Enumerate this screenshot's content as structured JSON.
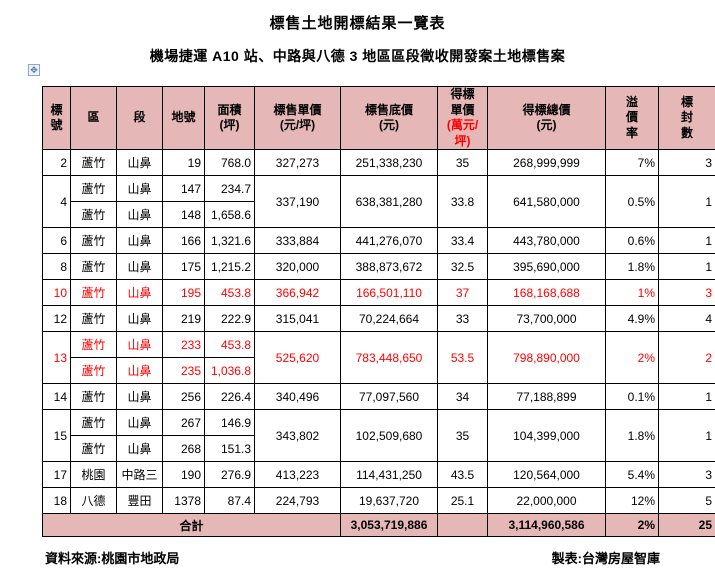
{
  "page": {
    "title": "標售土地開標結果一覽表",
    "subtitle": "機場捷運 A10 站、中路與八德 3 地區區段徵收開發案土地標售案",
    "footer_source": "資料來源:桃園市地政局",
    "footer_credit": "製表:台灣房屋智庫"
  },
  "colors": {
    "header_bg": "#e5b8b7",
    "total_bg": "#e5b8b7",
    "red_text": "#ff0000",
    "border": "#000000"
  },
  "table": {
    "headers": [
      {
        "text": "標\n號"
      },
      {
        "text": "區"
      },
      {
        "text": "段"
      },
      {
        "text": "地號"
      },
      {
        "text": "面積\n(坪)"
      },
      {
        "text": "標售單價\n(元/坪)"
      },
      {
        "text": "標售底價\n(元)"
      },
      {
        "text": "得標\n單價",
        "sub": "(萬元/坪)"
      },
      {
        "text": "得標總價\n(元)"
      },
      {
        "text": "溢\n價\n率"
      },
      {
        "text": "標\n封\n數"
      }
    ],
    "rows": [
      {
        "bid_no": "2",
        "red": false,
        "parcels": [
          {
            "district": "蘆竹",
            "section": "山鼻",
            "lot": "19",
            "area": "768.0"
          }
        ],
        "unit_price": "327,273",
        "floor_price": "251,338,230",
        "win_unit": "35",
        "win_total": "268,999,999",
        "premium": "7%",
        "bids": "3"
      },
      {
        "bid_no": "4",
        "red": false,
        "parcels": [
          {
            "district": "蘆竹",
            "section": "山鼻",
            "lot": "147",
            "area": "234.7"
          },
          {
            "district": "蘆竹",
            "section": "山鼻",
            "lot": "148",
            "area": "1,658.6"
          }
        ],
        "unit_price": "337,190",
        "floor_price": "638,381,280",
        "win_unit": "33.8",
        "win_total": "641,580,000",
        "premium": "0.5%",
        "bids": "1"
      },
      {
        "bid_no": "6",
        "red": false,
        "parcels": [
          {
            "district": "蘆竹",
            "section": "山鼻",
            "lot": "166",
            "area": "1,321.6"
          }
        ],
        "unit_price": "333,884",
        "floor_price": "441,276,070",
        "win_unit": "33.4",
        "win_total": "443,780,000",
        "premium": "0.6%",
        "bids": "1"
      },
      {
        "bid_no": "8",
        "red": false,
        "parcels": [
          {
            "district": "蘆竹",
            "section": "山鼻",
            "lot": "175",
            "area": "1,215.2"
          }
        ],
        "unit_price": "320,000",
        "floor_price": "388,873,672",
        "win_unit": "32.5",
        "win_total": "395,690,000",
        "premium": "1.8%",
        "bids": "1"
      },
      {
        "bid_no": "10",
        "red": true,
        "parcels": [
          {
            "district": "蘆竹",
            "section": "山鼻",
            "lot": "195",
            "area": "453.8"
          }
        ],
        "unit_price": "366,942",
        "floor_price": "166,501,110",
        "win_unit": "37",
        "win_total": "168,168,688",
        "premium": "1%",
        "bids": "3"
      },
      {
        "bid_no": "12",
        "red": false,
        "parcels": [
          {
            "district": "蘆竹",
            "section": "山鼻",
            "lot": "219",
            "area": "222.9"
          }
        ],
        "unit_price": "315,041",
        "floor_price": "70,224,664",
        "win_unit": "33",
        "win_total": "73,700,000",
        "premium": "4.9%",
        "bids": "4"
      },
      {
        "bid_no": "13",
        "red": true,
        "parcels": [
          {
            "district": "蘆竹",
            "section": "山鼻",
            "lot": "233",
            "area": "453.8"
          },
          {
            "district": "蘆竹",
            "section": "山鼻",
            "lot": "235",
            "area": "1,036.8"
          }
        ],
        "unit_price": "525,620",
        "floor_price": "783,448,650",
        "win_unit": "53.5",
        "win_total": "798,890,000",
        "premium": "2%",
        "bids": "2"
      },
      {
        "bid_no": "14",
        "red": false,
        "parcels": [
          {
            "district": "蘆竹",
            "section": "山鼻",
            "lot": "256",
            "area": "226.4"
          }
        ],
        "unit_price": "340,496",
        "floor_price": "77,097,560",
        "win_unit": "34",
        "win_total": "77,188,899",
        "premium": "0.1%",
        "bids": "1"
      },
      {
        "bid_no": "15",
        "red": false,
        "parcels": [
          {
            "district": "蘆竹",
            "section": "山鼻",
            "lot": "267",
            "area": "146.9"
          },
          {
            "district": "蘆竹",
            "section": "山鼻",
            "lot": "268",
            "area": "151.3"
          }
        ],
        "unit_price": "343,802",
        "floor_price": "102,509,680",
        "win_unit": "35",
        "win_total": "104,399,000",
        "premium": "1.8%",
        "bids": "1"
      },
      {
        "bid_no": "17",
        "red": false,
        "parcels": [
          {
            "district": "桃園",
            "section": "中路三",
            "lot": "190",
            "area": "276.9"
          }
        ],
        "unit_price": "413,223",
        "floor_price": "114,431,250",
        "win_unit": "43.5",
        "win_total": "120,564,000",
        "premium": "5.4%",
        "bids": "3"
      },
      {
        "bid_no": "18",
        "red": false,
        "parcels": [
          {
            "district": "八德",
            "section": "豐田",
            "lot": "1378",
            "area": "87.4"
          }
        ],
        "unit_price": "224,793",
        "floor_price": "19,637,720",
        "win_unit": "25.1",
        "win_total": "22,000,000",
        "premium": "12%",
        "bids": "5"
      }
    ],
    "total": {
      "label": "合計",
      "floor_price": "3,053,719,886",
      "win_unit": "",
      "win_total": "3,114,960,586",
      "premium": "2%",
      "bids": "25"
    }
  }
}
